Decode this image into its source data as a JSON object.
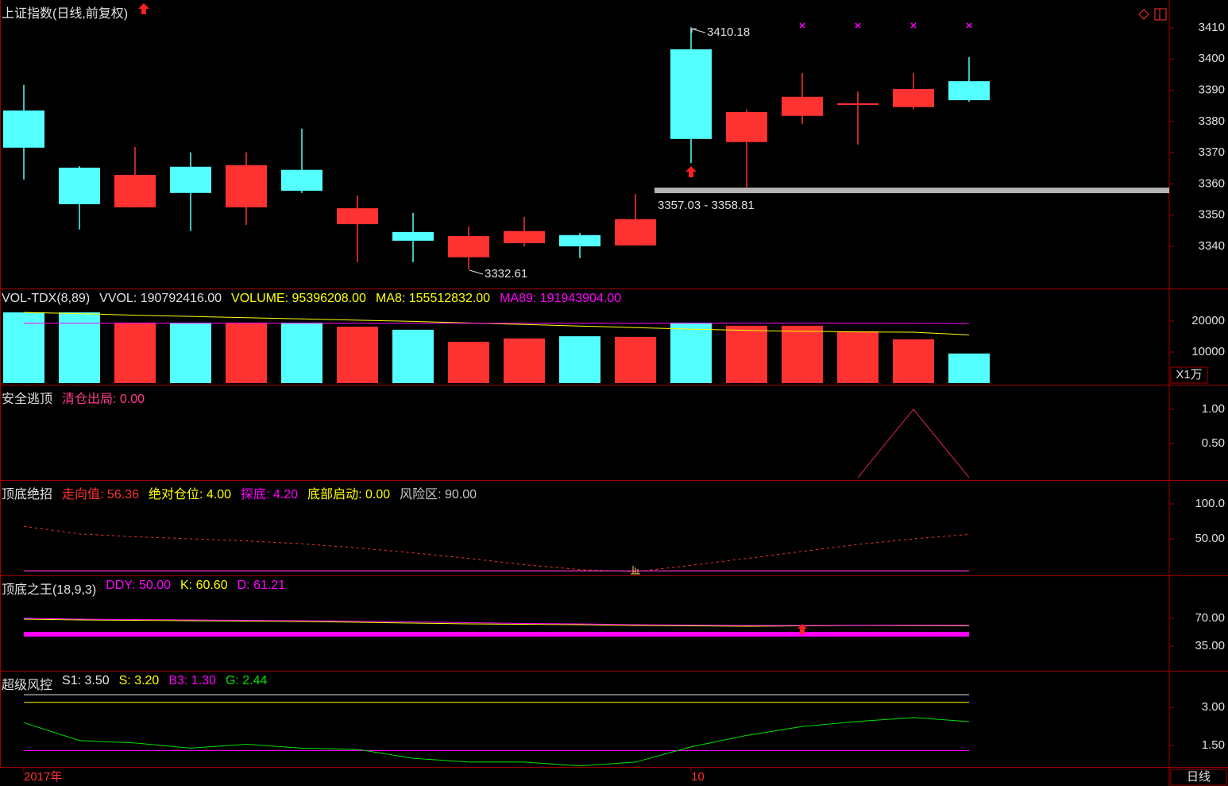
{
  "period_label": "日线",
  "chart_data": [
    {
      "type": "candlestick",
      "title": "上证指数(日线,前复权)",
      "categories": [
        "2017年",
        null,
        null,
        null,
        null,
        null,
        null,
        null,
        null,
        null,
        null,
        null,
        "10",
        null,
        null,
        null,
        null,
        null
      ],
      "open": [
        3383.5,
        3365.2,
        3352.5,
        3365.5,
        3352.5,
        3364.5,
        3347.1,
        3344.6,
        3336.5,
        3341.0,
        3343.6,
        3340.3,
        3403.1,
        3373.4,
        3381.8,
        3385.8,
        3384.6,
        3392.9
      ],
      "high": [
        3391.7,
        3365.7,
        3371.8,
        3370.1,
        3370.1,
        3377.7,
        3356.3,
        3350.7,
        3346.4,
        3349.4,
        3344.3,
        3356.8,
        3410.18,
        3383.8,
        3395.5,
        3389.6,
        3395.5,
        3400.6
      ],
      "low": [
        3361.4,
        3345.4,
        3352.5,
        3344.9,
        3346.9,
        3357.1,
        3334.9,
        3334.9,
        3332.61,
        3340.0,
        3336.2,
        3340.3,
        3366.7,
        3358.9,
        3379.2,
        3372.6,
        3383.8,
        3386.3
      ],
      "close": [
        3371.6,
        3353.5,
        3362.9,
        3357.1,
        3366.0,
        3357.8,
        3352.2,
        3341.8,
        3343.3,
        3344.9,
        3340.0,
        3348.7,
        3374.4,
        3383.0,
        3387.9,
        3385.8,
        3390.4,
        3386.8
      ],
      "up_color": "#ff3232",
      "down_color": "#54ffff",
      "ylim": [
        3326.5,
        3418.9
      ],
      "yticks": [
        3340,
        3350,
        3360,
        3370,
        3380,
        3390,
        3400,
        3410
      ],
      "annotations": [
        {
          "label": "3410.18",
          "value": 3410.18
        },
        {
          "label": "3332.61",
          "value": 3332.61
        }
      ],
      "support_band": {
        "label": "3357.03 - 3358.81",
        "low": 3357.03,
        "high": 3358.81,
        "color": "#b4b4b4"
      }
    },
    {
      "type": "bar",
      "title": "VOL-TDX(8,89)",
      "unit_label": "X1万",
      "readouts": [
        {
          "name": "VVOL",
          "value": 190792416,
          "label": "190792416.00",
          "color": "#e0e0e0"
        },
        {
          "name": "VOLUME",
          "value": 95396208,
          "label": "95396208.00",
          "color": "#ffff00"
        },
        {
          "name": "MA8",
          "value": 155512832,
          "label": "155512832.00",
          "color": "#ffff00"
        },
        {
          "name": "MA89",
          "value": 191943904,
          "label": "191943904.00",
          "color": "#ff00ff"
        }
      ],
      "values": [
        22800,
        22800,
        19500,
        19500,
        19500,
        19500,
        18200,
        17200,
        13300,
        14400,
        15100,
        14900,
        19500,
        18500,
        18500,
        16700,
        14100,
        9539.6208
      ],
      "series": [
        {
          "name": "MA8",
          "color": "#ffff00",
          "values": [
            22800,
            22400,
            21900,
            21500,
            21100,
            20700,
            20300,
            19900,
            19400,
            18900,
            18400,
            17900,
            17400,
            17000,
            16700,
            16500,
            16400,
            15551.2832
          ]
        },
        {
          "name": "MA89",
          "color": "#ff00ff",
          "values": [
            19300,
            19300,
            19300,
            19300,
            19300,
            19300,
            19300,
            19300,
            19300,
            19300,
            19300,
            19300,
            19300,
            19300,
            19300,
            19300,
            19250,
            19194.3904
          ]
        }
      ],
      "ylim": [
        -513,
        30256
      ],
      "yticks": [
        10000,
        20000
      ]
    },
    {
      "type": "line",
      "title": "安全逃顶",
      "readouts": [
        {
          "name": "清仓出局",
          "label": "0.00",
          "color": "#ff3c8c",
          "line_color": "#e0207a",
          "values": [
            null,
            null,
            null,
            null,
            null,
            null,
            null,
            null,
            null,
            null,
            null,
            null,
            null,
            null,
            null,
            0,
            1,
            0
          ]
        }
      ],
      "ylim": [
        -0.035,
        1.349
      ],
      "yticks": [
        {
          "value": 0.5,
          "label": "0.50"
        },
        {
          "value": 1,
          "label": "1.00"
        }
      ]
    },
    {
      "type": "line",
      "title": "顶底绝招",
      "readouts": [
        {
          "name": "走向值",
          "label": "56.36",
          "color": "#ff3232",
          "dash": true,
          "values": [
            68,
            57,
            53,
            50,
            47,
            43,
            37,
            30,
            22,
            13,
            6,
            3,
            12,
            22,
            32,
            42,
            50,
            56.36
          ]
        },
        {
          "name": "绝对仓位",
          "label": "4.00",
          "color": "#ffff00",
          "values": [
            4,
            4,
            4,
            4,
            4,
            4,
            4,
            4,
            4,
            4,
            4,
            4,
            4,
            4,
            4,
            4,
            4,
            4
          ]
        },
        {
          "name": "探底",
          "label": "4.20",
          "color": "#ff00ff",
          "values": [
            4.2,
            4.2,
            4.2,
            4.2,
            4.2,
            4.2,
            4.2,
            4.2,
            4.2,
            4.2,
            4.2,
            4.2,
            4.2,
            4.2,
            4.2,
            4.2,
            4.2,
            4.2
          ]
        },
        {
          "name": "底部启动",
          "label": "0.00",
          "color": "#ffff00",
          "value": 0
        },
        {
          "name": "风险区",
          "label": "90.00",
          "color": "#c8c8c8",
          "value": 90
        }
      ],
      "ylim": [
        -2.3,
        133
      ],
      "yticks": [
        {
          "value": 50,
          "label": "50.00"
        },
        {
          "value": 100,
          "label": "100.0"
        }
      ]
    },
    {
      "type": "line",
      "title": "顶底之王(18,9,3)",
      "readouts": [
        {
          "name": "DDY",
          "label": "50.00",
          "color": "#ff00ff",
          "width": 6,
          "values": [
            50,
            50,
            50,
            50,
            50,
            50,
            50,
            50,
            50,
            50,
            50,
            50,
            50,
            50,
            50,
            50,
            50,
            50
          ]
        },
        {
          "name": "K",
          "label": "60.60",
          "color": "#ffff00",
          "values": [
            69,
            68,
            67.5,
            67,
            66.5,
            66,
            65,
            64,
            63,
            62.5,
            62,
            61,
            60.5,
            60,
            60.5,
            61,
            61,
            60.6
          ]
        },
        {
          "name": "D",
          "label": "61.21",
          "color": "#ff00ff",
          "values": [
            70,
            69,
            68.5,
            68,
            67.5,
            67,
            66.5,
            65.5,
            64.5,
            63.5,
            63,
            62,
            61.5,
            61,
            61,
            61.3,
            61.5,
            61.21
          ]
        }
      ],
      "ylim": [
        4,
        123
      ],
      "yticks": [
        {
          "value": 35,
          "label": "35.00"
        },
        {
          "value": 70,
          "label": "70.00"
        }
      ]
    },
    {
      "type": "line",
      "title": "超级风控",
      "readouts": [
        {
          "name": "S1",
          "label": "3.50",
          "color": "#e8e8e8",
          "values": [
            3.5,
            3.5,
            3.5,
            3.5,
            3.5,
            3.5,
            3.5,
            3.5,
            3.5,
            3.5,
            3.5,
            3.5,
            3.5,
            3.5,
            3.5,
            3.5,
            3.5,
            3.5
          ]
        },
        {
          "name": "S",
          "label": "3.20",
          "color": "#ffff00",
          "values": [
            3.2,
            3.2,
            3.2,
            3.2,
            3.2,
            3.2,
            3.2,
            3.2,
            3.2,
            3.2,
            3.2,
            3.2,
            3.2,
            3.2,
            3.2,
            3.2,
            3.2,
            3.2
          ]
        },
        {
          "name": "B3",
          "label": "1.30",
          "color": "#ff00ff",
          "values": [
            1.3,
            1.3,
            1.3,
            1.3,
            1.3,
            1.3,
            1.3,
            1.3,
            1.3,
            1.3,
            1.3,
            1.3,
            1.3,
            1.3,
            1.3,
            1.3,
            1.3,
            1.3
          ]
        },
        {
          "name": "G",
          "label": "2.44",
          "color": "#00e000",
          "values": [
            2.4,
            1.7,
            1.6,
            1.4,
            1.55,
            1.4,
            1.35,
            1.0,
            0.85,
            0.85,
            0.7,
            0.85,
            1.45,
            1.9,
            2.25,
            2.45,
            2.6,
            2.44
          ]
        }
      ],
      "ylim": [
        0.66,
        4.41
      ],
      "yticks": [
        {
          "value": 1.5,
          "label": "1.50"
        },
        {
          "value": 3,
          "label": "3.00"
        }
      ]
    }
  ]
}
